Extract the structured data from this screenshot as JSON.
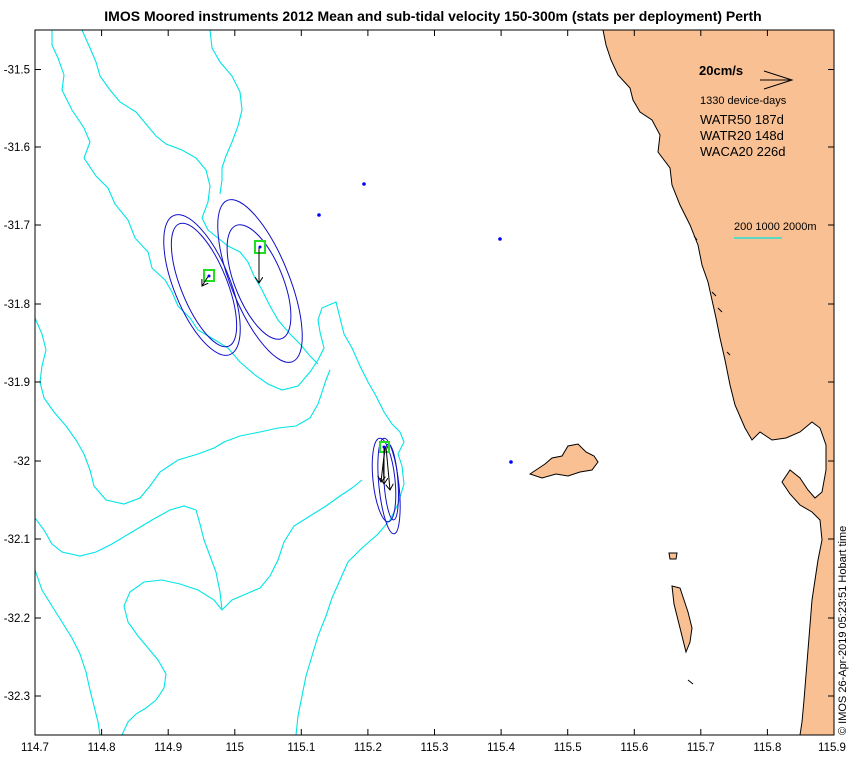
{
  "title": "IMOS Moored instruments 2012 Mean and sub-tidal velocity 150-300m (stats per deployment) Perth",
  "colors": {
    "land": "#f9c193",
    "contour": "#00e5e5",
    "ellipse": "#1010c8",
    "marker": "#22dd22",
    "arrow": "#000000",
    "site_dot": "#0000ff"
  },
  "axes": {
    "xlim": [
      114.7,
      115.9
    ],
    "ylim": [
      -32.355,
      -31.445
    ],
    "x_ticks": [
      "114.7",
      "114.8",
      "114.9",
      "115",
      "115.1",
      "115.2",
      "115.3",
      "115.4",
      "115.5",
      "115.6",
      "115.7",
      "115.8",
      "115.9"
    ],
    "y_ticks": [
      "-31.5",
      "-31.6",
      "-31.7",
      "-31.8",
      "-31.9",
      "-32",
      "-32.1",
      "-32.2",
      "-32.3"
    ]
  },
  "legend": {
    "scale_label": "20cm/s",
    "scale_speed_cm_s": 20,
    "device_days": "1330 device-days",
    "moorings": [
      "WATR50 187d",
      "WATR20 148d",
      "WACA20 226d"
    ],
    "contour_label": "200 1000 2000m"
  },
  "stamp": "© IMOS 26-Apr-2019 05:23:51 Hobart time",
  "sites": [
    {
      "name": "WATR50",
      "lon": 114.964,
      "lat": -31.762
    },
    {
      "name": "WATR20",
      "lon": 115.039,
      "lat": -31.727
    },
    {
      "name": "WACA20",
      "lon": 115.228,
      "lat": -31.98
    }
  ],
  "other_sites": [
    {
      "lon": 115.197,
      "lat": -31.647
    },
    {
      "lon": 115.128,
      "lat": -31.686
    },
    {
      "lon": 115.399,
      "lat": -31.716
    },
    {
      "lon": 115.416,
      "lat": -31.999
    }
  ]
}
